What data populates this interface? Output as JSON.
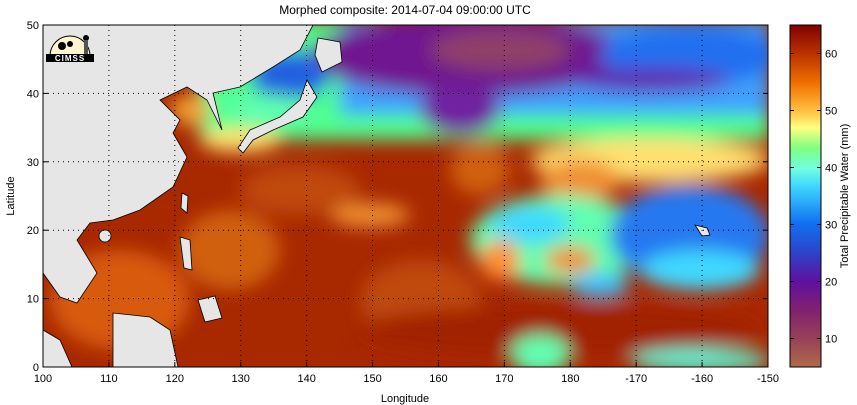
{
  "title": "Morphed composite: 2014-07-04 09:00:00 UTC",
  "logo_text": "CIMSS",
  "chart_data": {
    "type": "heatmap",
    "title": "Morphed composite: 2014-07-04 09:00:00 UTC",
    "xlabel": "Longitude",
    "ylabel": "Latitude",
    "xlim": [
      100,
      210
    ],
    "ylim": [
      0,
      50
    ],
    "x_ticks": [
      "100",
      "110",
      "120",
      "130",
      "140",
      "150",
      "160",
      "170",
      "180",
      "-170",
      "-160",
      "-150"
    ],
    "y_ticks": [
      "0",
      "10",
      "20",
      "30",
      "40",
      "50"
    ],
    "grid": true,
    "colorbar": {
      "label": "Total Precipitable Water (mm)",
      "range": [
        5,
        65
      ],
      "ticks": [
        "10",
        "20",
        "30",
        "40",
        "50",
        "60"
      ],
      "location": "right"
    },
    "colors": {
      "land": "#e6e6e6",
      "high": "#8b0000",
      "low": "#b06040",
      "mid": "#80ff80"
    }
  }
}
